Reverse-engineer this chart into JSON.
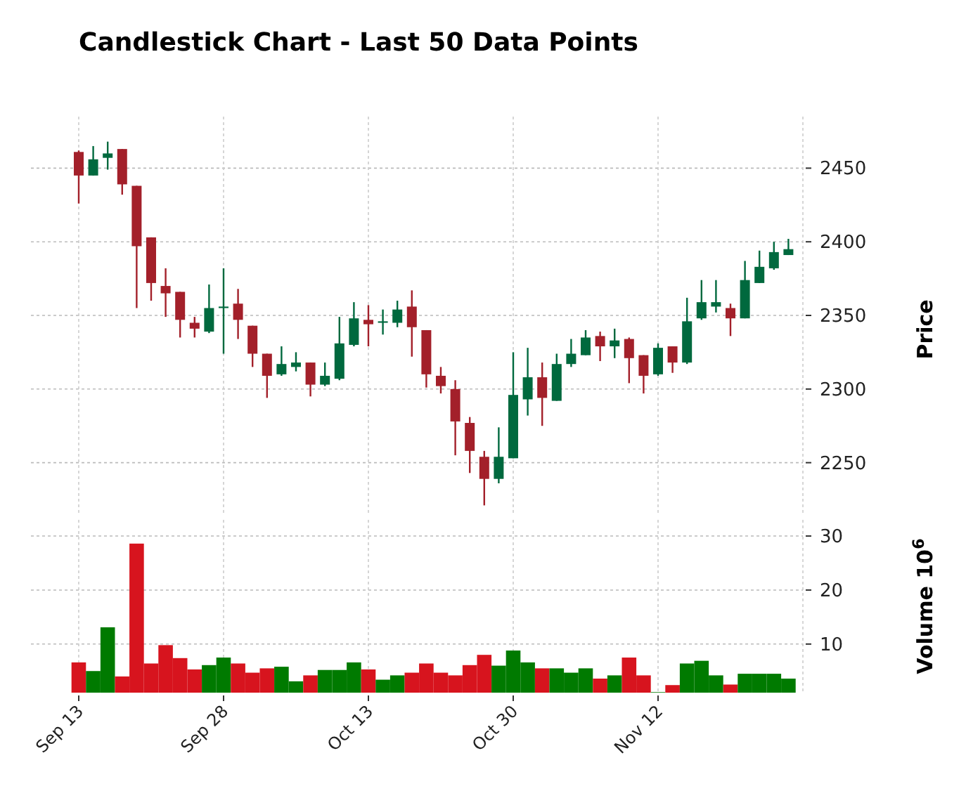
{
  "chart_data": [
    {
      "type": "candlestick",
      "title": "Candlestick Chart - Last 50 Data Points",
      "ylabel": "Price",
      "categories": [
        null,
        null,
        null,
        null,
        null,
        null,
        null,
        null,
        null,
        null,
        null,
        null,
        null,
        null,
        null,
        null,
        null,
        null,
        null,
        null,
        null,
        null,
        null,
        null,
        null,
        null,
        null,
        null,
        null,
        null,
        null,
        null,
        null,
        null,
        null,
        null,
        null,
        null,
        null,
        null,
        null,
        null,
        null,
        null,
        null,
        null,
        null,
        null,
        null,
        null
      ],
      "ohlc": [
        [
          2461,
          2462,
          2426,
          2445
        ],
        [
          2445,
          2465,
          2445,
          2456
        ],
        [
          2457,
          2468,
          2449,
          2460
        ],
        [
          2463,
          2463,
          2432,
          2439
        ],
        [
          2438,
          2438,
          2355,
          2397
        ],
        [
          2403,
          2403,
          2360,
          2372
        ],
        [
          2370,
          2382,
          2349,
          2365
        ],
        [
          2366,
          2366,
          2335,
          2347
        ],
        [
          2345,
          2349,
          2335,
          2341
        ],
        [
          2339,
          2371,
          2338,
          2355
        ],
        [
          2355,
          2382,
          2324,
          2356
        ],
        [
          2358,
          2368,
          2334,
          2347
        ],
        [
          2343,
          2343,
          2315,
          2324
        ],
        [
          2324,
          2324,
          2294,
          2309
        ],
        [
          2310,
          2329,
          2309,
          2317
        ],
        [
          2315,
          2325,
          2312,
          2318
        ],
        [
          2318,
          2318,
          2295,
          2303
        ],
        [
          2303,
          2318,
          2302,
          2309
        ],
        [
          2307,
          2349,
          2306,
          2331
        ],
        [
          2330,
          2359,
          2329,
          2348
        ],
        [
          2347,
          2357,
          2329,
          2344
        ],
        [
          2345,
          2354,
          2337,
          2346
        ],
        [
          2345,
          2360,
          2342,
          2354
        ],
        [
          2356,
          2367,
          2322,
          2342
        ],
        [
          2340,
          2340,
          2301,
          2310
        ],
        [
          2309,
          2315,
          2297,
          2302
        ],
        [
          2300,
          2306,
          2255,
          2278
        ],
        [
          2277,
          2281,
          2243,
          2258
        ],
        [
          2254,
          2258,
          2221,
          2239
        ],
        [
          2239,
          2274,
          2236,
          2254
        ],
        [
          2253,
          2325,
          2253,
          2296
        ],
        [
          2293,
          2328,
          2282,
          2308
        ],
        [
          2308,
          2318,
          2275,
          2294
        ],
        [
          2292,
          2324,
          2292,
          2317
        ],
        [
          2317,
          2334,
          2315,
          2324
        ],
        [
          2323,
          2340,
          2323,
          2335
        ],
        [
          2336,
          2339,
          2319,
          2329
        ],
        [
          2329,
          2341,
          2321,
          2333
        ],
        [
          2334,
          2335,
          2304,
          2321
        ],
        [
          2323,
          2323,
          2297,
          2309
        ],
        [
          2310,
          2331,
          2309,
          2328
        ],
        [
          2329,
          2329,
          2311,
          2318
        ],
        [
          2318,
          2362,
          2317,
          2346
        ],
        [
          2348,
          2374,
          2347,
          2359
        ],
        [
          2356,
          2374,
          2352,
          2359
        ],
        [
          2355,
          2358,
          2336,
          2348
        ],
        [
          2348,
          2387,
          2348,
          2374
        ],
        [
          2372,
          2394,
          2372,
          2383
        ],
        [
          2382,
          2400,
          2381,
          2393
        ],
        [
          2391,
          2402,
          2391,
          2395
        ]
      ],
      "colors": [
        "#a3202a",
        "#00693e",
        "#00693e",
        "#a3202a",
        "#a3202a",
        "#a3202a",
        "#a3202a",
        "#a3202a",
        "#a3202a",
        "#00693e",
        "#00693e",
        "#a3202a",
        "#a3202a",
        "#a3202a",
        "#00693e",
        "#00693e",
        "#a3202a",
        "#00693e",
        "#00693e",
        "#00693e",
        "#a3202a",
        "#00693e",
        "#00693e",
        "#a3202a",
        "#a3202a",
        "#a3202a",
        "#a3202a",
        "#a3202a",
        "#a3202a",
        "#00693e",
        "#00693e",
        "#00693e",
        "#a3202a",
        "#00693e",
        "#00693e",
        "#00693e",
        "#a3202a",
        "#00693e",
        "#a3202a",
        "#a3202a",
        "#00693e",
        "#a3202a",
        "#00693e",
        "#00693e",
        "#00693e",
        "#a3202a",
        "#00693e",
        "#00693e",
        "#00693e",
        "#00693e"
      ],
      "ylim": [
        2215,
        2485
      ],
      "yticks": [
        2250,
        2300,
        2350,
        2400,
        2450
      ],
      "grid": true,
      "tick_labels": "y"
    },
    {
      "type": "bar",
      "ylabel": "Volume 10$^{6}$",
      "categories": [
        "Sep 13",
        null,
        null,
        null,
        null,
        null,
        null,
        null,
        null,
        null,
        "Sep 28",
        null,
        null,
        null,
        null,
        null,
        null,
        null,
        null,
        null,
        "Oct 13",
        null,
        null,
        null,
        null,
        null,
        null,
        null,
        null,
        null,
        "Oct 30",
        null,
        null,
        null,
        null,
        null,
        null,
        null,
        null,
        null,
        "Nov 12",
        null,
        null,
        null,
        null,
        null,
        null,
        null,
        null,
        null
      ],
      "values": [
        6.6,
        5.0,
        13.1,
        4.0,
        28.6,
        6.4,
        9.8,
        7.4,
        5.3,
        6.1,
        7.5,
        6.4,
        4.7,
        5.5,
        5.8,
        3.1,
        4.2,
        5.2,
        5.2,
        6.6,
        5.3,
        3.4,
        4.2,
        4.7,
        6.4,
        4.7,
        4.2,
        6.1,
        8.0,
        6.0,
        8.8,
        6.6,
        5.5,
        5.5,
        4.7,
        5.5,
        3.6,
        4.2,
        7.5,
        4.2,
        1.1,
        2.4,
        6.4,
        6.9,
        4.2,
        2.5,
        4.5,
        4.5,
        4.5,
        3.6
      ],
      "colors": [
        "#d7141e",
        "#007a00",
        "#007a00",
        "#d7141e",
        "#d7141e",
        "#d7141e",
        "#d7141e",
        "#d7141e",
        "#d7141e",
        "#007a00",
        "#007a00",
        "#d7141e",
        "#d7141e",
        "#d7141e",
        "#007a00",
        "#007a00",
        "#d7141e",
        "#007a00",
        "#007a00",
        "#007a00",
        "#d7141e",
        "#007a00",
        "#007a00",
        "#d7141e",
        "#d7141e",
        "#d7141e",
        "#d7141e",
        "#d7141e",
        "#d7141e",
        "#007a00",
        "#007a00",
        "#007a00",
        "#d7141e",
        "#007a00",
        "#007a00",
        "#007a00",
        "#d7141e",
        "#007a00",
        "#d7141e",
        "#d7141e",
        "#007a00",
        "#d7141e",
        "#007a00",
        "#007a00",
        "#007a00",
        "#d7141e",
        "#007a00",
        "#007a00",
        "#007a00",
        "#007a00"
      ],
      "ylim": [
        1,
        33
      ],
      "yticks": [
        10,
        20,
        30
      ],
      "grid": true
    }
  ]
}
